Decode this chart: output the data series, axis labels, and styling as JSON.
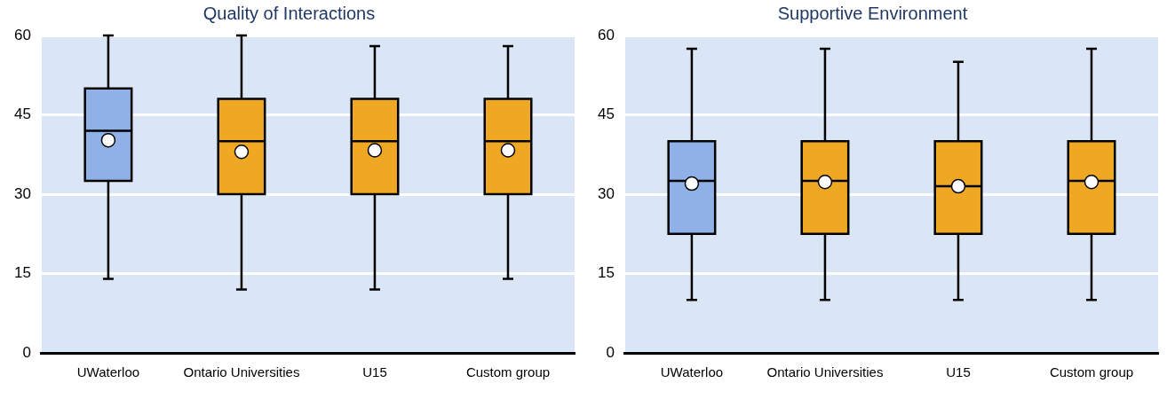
{
  "chart_data": [
    {
      "type": "box",
      "title": "Quality of Interactions",
      "categories": [
        "UWaterloo",
        "Ontario Universities",
        "U15",
        "Custom group"
      ],
      "colors": [
        "#8fb1e8",
        "#efa823",
        "#efa823",
        "#efa823"
      ],
      "ylim": [
        0,
        60
      ],
      "yticks": [
        0,
        15,
        30,
        45,
        60
      ],
      "grid": "y",
      "legend": false,
      "marker": "circle",
      "boxes": [
        {
          "low": 14,
          "q1": 32.5,
          "median": 42,
          "q3": 50,
          "high": 60,
          "mean": 40.2
        },
        {
          "low": 12,
          "q1": 30,
          "median": 40,
          "q3": 48,
          "high": 60,
          "mean": 38
        },
        {
          "low": 12,
          "q1": 30,
          "median": 40,
          "q3": 48,
          "high": 58,
          "mean": 38.3
        },
        {
          "low": 14,
          "q1": 30,
          "median": 40,
          "q3": 48,
          "high": 58,
          "mean": 38.3
        }
      ]
    },
    {
      "type": "box",
      "title": "Supportive Environment",
      "categories": [
        "UWaterloo",
        "Ontario Universities",
        "U15",
        "Custom group"
      ],
      "colors": [
        "#8fb1e8",
        "#efa823",
        "#efa823",
        "#efa823"
      ],
      "ylim": [
        0,
        60
      ],
      "yticks": [
        0,
        15,
        30,
        45,
        60
      ],
      "grid": "y",
      "legend": false,
      "marker": "circle",
      "boxes": [
        {
          "low": 10,
          "q1": 22.5,
          "median": 32.5,
          "q3": 40,
          "high": 57.5,
          "mean": 32
        },
        {
          "low": 10,
          "q1": 22.5,
          "median": 32.5,
          "q3": 40,
          "high": 57.5,
          "mean": 32.3
        },
        {
          "low": 10,
          "q1": 22.5,
          "median": 31.5,
          "q3": 40,
          "high": 55,
          "mean": 31.5
        },
        {
          "low": 10,
          "q1": 22.5,
          "median": 32.5,
          "q3": 40,
          "high": 57.5,
          "mean": 32.3
        }
      ]
    }
  ]
}
